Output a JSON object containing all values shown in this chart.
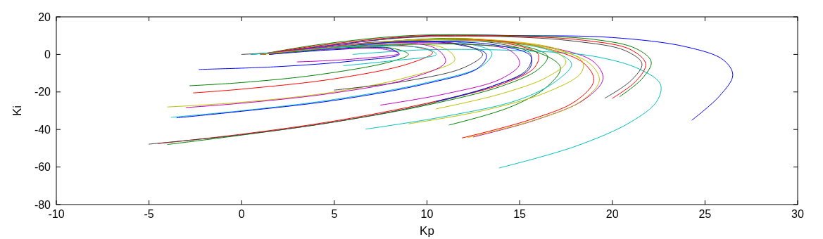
{
  "chart_data": {
    "type": "line",
    "xlabel": "Kp",
    "ylabel": "Ki",
    "xlim": [
      -10,
      30
    ],
    "ylim": [
      -80,
      20
    ],
    "xticks": [
      -10,
      -5,
      0,
      5,
      10,
      15,
      20,
      25,
      30
    ],
    "yticks": [
      -80,
      -60,
      -40,
      -20,
      0,
      20
    ],
    "grid": false,
    "marker": "none",
    "line_style": "solid",
    "series": [
      {
        "color": "#0000ff",
        "x": [
          24.3,
          25.8,
          26.5,
          26,
          24,
          20,
          15,
          10,
          5,
          1
        ],
        "values": [
          -35,
          -22,
          -11,
          -3,
          4,
          9,
          10,
          10,
          5,
          0
        ]
      },
      {
        "color": "#008000",
        "x": [
          -4,
          0,
          5,
          10,
          14,
          16,
          16.5,
          15,
          12,
          8,
          4,
          1
        ],
        "values": [
          -48,
          -43,
          -36,
          -27,
          -17,
          -8,
          -1,
          5,
          8.5,
          7,
          3,
          0
        ]
      },
      {
        "color": "#ff0000",
        "x": [
          -4.5,
          0,
          5,
          10,
          14,
          15.8,
          16,
          14.5,
          11,
          7,
          3,
          0.5
        ],
        "values": [
          -47.5,
          -42.5,
          -35.5,
          -26,
          -16,
          -7,
          0,
          5.5,
          8,
          6,
          2,
          0
        ]
      },
      {
        "color": "#00bfbf",
        "x": [
          -3.8,
          0,
          5,
          10,
          13,
          13.5,
          12,
          9,
          5,
          1.5
        ],
        "values": [
          -33.5,
          -30,
          -24,
          -15,
          -6,
          1,
          6,
          7,
          4,
          0
        ]
      },
      {
        "color": "#bf00bf",
        "x": [
          12.5,
          16,
          18.5,
          19.5,
          19,
          17,
          13,
          8,
          3,
          1
        ],
        "values": [
          -44,
          -34.5,
          -24,
          -13,
          -4,
          3,
          7,
          6,
          2,
          0
        ]
      },
      {
        "color": "#bfbf00",
        "x": [
          -4,
          0,
          5,
          9,
          11.5,
          11,
          8,
          4,
          1
        ],
        "values": [
          -28,
          -25.5,
          -20,
          -12,
          -3,
          3,
          6,
          3,
          0
        ]
      },
      {
        "color": "#404040",
        "x": [
          -5,
          0,
          5,
          10,
          13.5,
          15.4,
          15.6,
          14,
          10,
          6,
          2.5,
          0
        ],
        "values": [
          -47.8,
          -42.8,
          -36,
          -26.5,
          -17,
          -8,
          0,
          5.5,
          8,
          5,
          1.5,
          0
        ]
      },
      {
        "color": "#0000ff",
        "x": [
          -3.5,
          0,
          5,
          10,
          12.8,
          13.2,
          11.5,
          8,
          4,
          1
        ],
        "values": [
          -33.8,
          -30.3,
          -24.5,
          -15.5,
          -7,
          0,
          5.5,
          7,
          3,
          0
        ]
      },
      {
        "color": "#008000",
        "x": [
          -2.8,
          0,
          4,
          8,
          9,
          8,
          5,
          1
        ],
        "values": [
          -16.7,
          -15,
          -11,
          -4,
          0,
          3.5,
          3,
          0
        ]
      },
      {
        "color": "#ff0000",
        "x": [
          -2.6,
          0,
          5,
          9,
          10.3,
          9,
          5,
          1.5
        ],
        "values": [
          -20.5,
          -18.5,
          -13,
          -5,
          1,
          4.5,
          4,
          0
        ]
      },
      {
        "color": "#00bfbf",
        "x": [
          13.9,
          18,
          21,
          22.4,
          22.6,
          21.5,
          19,
          15,
          10,
          6
        ],
        "values": [
          -60.5,
          -49,
          -36,
          -25,
          -16,
          -8,
          -1,
          2,
          2.5,
          0
        ]
      },
      {
        "color": "#bf00bf",
        "x": [
          7.5,
          11,
          14,
          15,
          14.5,
          12,
          8,
          4,
          1
        ],
        "values": [
          -27,
          -21,
          -13,
          -5,
          2,
          5.5,
          6,
          3,
          0
        ]
      },
      {
        "color": "#bfbf00",
        "x": [
          12.2,
          15.8,
          18.3,
          19.3,
          18.8,
          16.8,
          13,
          8,
          3,
          1
        ],
        "values": [
          -44.3,
          -35,
          -25,
          -14,
          -5,
          3,
          8,
          7,
          2,
          0
        ]
      },
      {
        "color": "#404040",
        "x": [
          19.6,
          21,
          21.6,
          20.7,
          18,
          14,
          9,
          4,
          1
        ],
        "values": [
          -23.3,
          -14,
          -5,
          2,
          7,
          9.5,
          9,
          4,
          0
        ]
      },
      {
        "color": "#0000ff",
        "x": [
          -2.3,
          2,
          6,
          8.5,
          8,
          5,
          1.5
        ],
        "values": [
          -8,
          -6.5,
          -3.5,
          0,
          3,
          2.5,
          0
        ]
      },
      {
        "color": "#008000",
        "x": [
          11.2,
          14.5,
          16.5,
          17.2,
          16,
          13,
          8,
          3,
          1
        ],
        "values": [
          -37.6,
          -28,
          -17,
          -7,
          1,
          5,
          5,
          1.5,
          0
        ]
      },
      {
        "color": "#ff0000",
        "x": [
          11.9,
          15.5,
          18,
          19,
          18.5,
          16.5,
          12.5,
          7
        ],
        "values": [
          -44.5,
          -35,
          -25,
          -14,
          -5,
          3,
          8,
          6
        ]
      },
      {
        "color": "#00bfbf",
        "x": [
          6.7,
          11,
          15,
          17,
          17.8,
          16.5,
          13,
          8,
          3,
          0.5
        ],
        "values": [
          -39.8,
          -33,
          -24,
          -14,
          -5,
          2.5,
          7,
          6,
          2,
          0
        ]
      },
      {
        "color": "#bf00bf",
        "x": [
          3,
          6,
          8.5,
          7.5,
          4,
          1
        ],
        "values": [
          -4,
          -2.5,
          0.5,
          3,
          2.5,
          0
        ]
      },
      {
        "color": "#bfbf00",
        "x": [
          9,
          13,
          16.5,
          18.3,
          18.4,
          17,
          13,
          8,
          3,
          1
        ],
        "values": [
          -37,
          -30,
          -20,
          -10,
          -4,
          3,
          8,
          7,
          2,
          0
        ]
      },
      {
        "color": "#404040",
        "x": [
          5,
          9,
          12,
          13,
          12,
          9,
          5,
          1
        ],
        "values": [
          -19,
          -14,
          -7,
          0,
          5,
          7,
          4,
          0
        ]
      },
      {
        "color": "#0000ff",
        "x": [
          10.5,
          13.5,
          15.5,
          15.6,
          14,
          10,
          6,
          2
        ],
        "values": [
          -25,
          -17,
          -8,
          -1,
          4.5,
          7,
          5,
          1
        ]
      },
      {
        "color": "#008000",
        "x": [
          20.4,
          21.6,
          22.1,
          21.3,
          19,
          14.5,
          9,
          4,
          1
        ],
        "values": [
          -22.5,
          -13,
          -4,
          3,
          8,
          10,
          10,
          5,
          0
        ]
      },
      {
        "color": "#ff0000",
        "x": [
          20,
          21.3,
          21.8,
          21,
          18.5,
          14,
          9,
          4,
          1
        ],
        "values": [
          -23.4,
          -14,
          -5,
          2.5,
          7.5,
          9.8,
          9.5,
          4.5,
          0
        ]
      },
      {
        "color": "#00bfbf",
        "x": [
          5.5,
          8,
          10.5,
          10,
          7,
          3,
          0.5
        ],
        "values": [
          -6,
          -3.5,
          0,
          3,
          4.5,
          2,
          0
        ]
      },
      {
        "color": "#bf00bf",
        "x": [
          -3,
          0,
          5,
          9,
          11,
          10.5,
          8,
          4,
          1
        ],
        "values": [
          -28.3,
          -26,
          -20.5,
          -13,
          -4,
          3,
          6.5,
          3.5,
          0
        ]
      },
      {
        "color": "#bfbf00",
        "x": [
          10.5,
          14,
          16.5,
          17.5,
          16.8,
          14,
          9,
          4,
          1
        ],
        "values": [
          -29,
          -21,
          -12,
          -4,
          2,
          6.5,
          7.5,
          3,
          0
        ]
      }
    ]
  }
}
